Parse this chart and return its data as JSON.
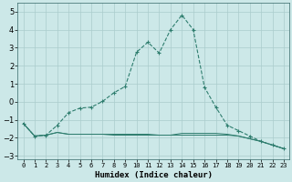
{
  "xlabel": "Humidex (Indice chaleur)",
  "x_values": [
    0,
    1,
    2,
    3,
    4,
    5,
    6,
    7,
    8,
    9,
    10,
    11,
    12,
    13,
    14,
    15,
    16,
    17,
    18,
    19,
    20,
    21,
    22,
    23
  ],
  "line1_y": [
    -1.2,
    -1.9,
    -1.85,
    -1.3,
    -0.6,
    -0.35,
    -0.3,
    0.02,
    0.5,
    0.85,
    2.75,
    3.3,
    2.7,
    4.0,
    4.8,
    4.0,
    0.8,
    -0.3,
    -1.3,
    -1.6,
    -1.9,
    -2.2,
    -2.4,
    -2.6
  ],
  "line2_y": [
    -1.2,
    -1.9,
    -1.85,
    -1.7,
    -1.8,
    -1.8,
    -1.8,
    -1.8,
    -1.8,
    -1.8,
    -1.8,
    -1.8,
    -1.85,
    -1.85,
    -1.75,
    -1.75,
    -1.75,
    -1.75,
    -1.8,
    -1.9,
    -2.05,
    -2.2,
    -2.4,
    -2.6
  ],
  "line3_y": [
    -1.2,
    -1.9,
    -1.85,
    -1.7,
    -1.8,
    -1.8,
    -1.8,
    -1.8,
    -1.85,
    -1.85,
    -1.85,
    -1.85,
    -1.85,
    -1.85,
    -1.85,
    -1.85,
    -1.85,
    -1.85,
    -1.85,
    -1.9,
    -2.05,
    -2.2,
    -2.4,
    -2.6
  ],
  "line_color": "#2e7d6e",
  "bg_color": "#cce8e8",
  "grid_color": "#aacccc",
  "ylim": [
    -3.2,
    5.5
  ],
  "yticks": [
    -3,
    -2,
    -1,
    0,
    1,
    2,
    3,
    4,
    5
  ],
  "xlim": [
    -0.5,
    23.5
  ]
}
